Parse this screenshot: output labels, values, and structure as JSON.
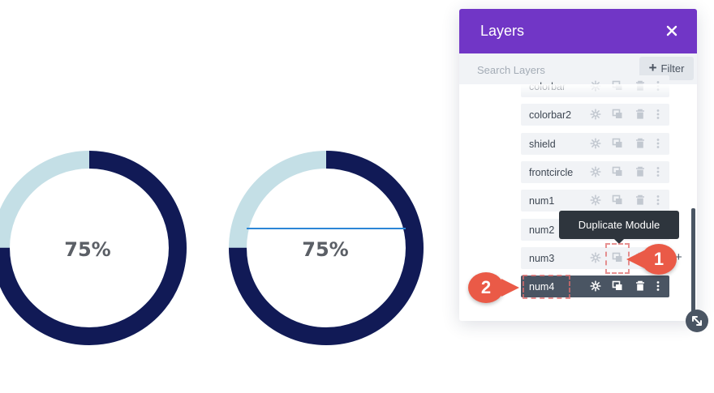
{
  "progress_rings": [
    {
      "label": "75%",
      "progress": 0.75
    },
    {
      "label": "75%",
      "progress": 0.75
    }
  ],
  "colors": {
    "ring_fill": "#111a56",
    "ring_track": "#c4dfe6",
    "divider_line": "#2c86d6",
    "panel_header": "#7136c6",
    "active_row": "#4a5563",
    "annotation_badge": "#ea5a47"
  },
  "layers_panel": {
    "title": "Layers",
    "close_icon": "close-icon",
    "search": {
      "placeholder": "Search Layers",
      "value": ""
    },
    "filter_label": "Filter",
    "items": [
      {
        "label": "colorbar",
        "active": false
      },
      {
        "label": "colorbar2",
        "active": false
      },
      {
        "label": "shield",
        "active": false
      },
      {
        "label": "frontcircle",
        "active": false
      },
      {
        "label": "num1",
        "active": false
      },
      {
        "label": "num2",
        "active": false
      },
      {
        "label": "num3",
        "active": false
      },
      {
        "label": "num4",
        "active": true
      }
    ],
    "item_icons": [
      "gear-icon",
      "duplicate-icon",
      "trash-icon",
      "more-icon"
    ]
  },
  "tooltip": {
    "text": "Duplicate Module"
  },
  "annotations": [
    {
      "number": "1"
    },
    {
      "number": "2"
    }
  ]
}
